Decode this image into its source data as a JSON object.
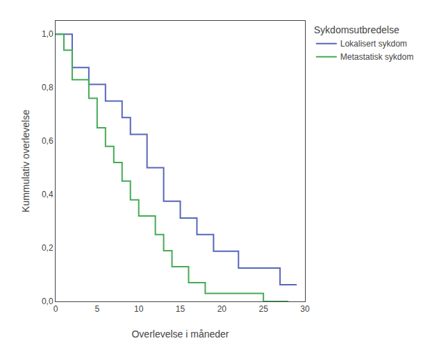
{
  "chart_data": {
    "type": "step",
    "xlabel": "Overlevelse i måneder",
    "ylabel": "Kummulativ overlevelse",
    "legend_title": "Sykdomsutbredelse",
    "legend": "right",
    "grid": false,
    "xlim": [
      0,
      30
    ],
    "ylim": [
      0.0,
      1.05
    ],
    "xticks": [
      0,
      5,
      10,
      15,
      20,
      25,
      30
    ],
    "yticks": [
      {
        "value": 0.0,
        "label": "0,0"
      },
      {
        "value": 0.2,
        "label": "0,2"
      },
      {
        "value": 0.4,
        "label": "0,4"
      },
      {
        "value": 0.6,
        "label": "0,6"
      },
      {
        "value": 0.8,
        "label": "0,8"
      },
      {
        "value": 1.0,
        "label": "1,0"
      }
    ],
    "series": [
      {
        "name": "Lokalisert sykdom",
        "color": "#5566bb",
        "x": [
          0,
          2,
          3,
          4,
          5,
          6,
          7,
          8,
          9,
          11,
          12,
          13,
          14,
          15,
          16,
          17,
          18,
          19,
          20,
          22,
          23,
          27,
          28,
          29
        ],
        "values": [
          1.0,
          0.875,
          0.875,
          0.812,
          0.812,
          0.75,
          0.75,
          0.688,
          0.625,
          0.5,
          0.5,
          0.375,
          0.375,
          0.312,
          0.312,
          0.25,
          0.25,
          0.188,
          0.188,
          0.125,
          0.125,
          0.0625,
          0.0625,
          0.0625
        ]
      },
      {
        "name": "Metastatisk sykdom",
        "color": "#44aa55",
        "x": [
          0,
          1,
          2,
          4,
          5,
          6,
          7,
          8,
          9,
          10,
          12,
          13,
          14,
          16,
          18,
          25,
          28
        ],
        "values": [
          1.0,
          0.94,
          0.83,
          0.76,
          0.65,
          0.58,
          0.52,
          0.45,
          0.38,
          0.32,
          0.25,
          0.19,
          0.13,
          0.07,
          0.03,
          0.0,
          0.0
        ]
      }
    ]
  }
}
